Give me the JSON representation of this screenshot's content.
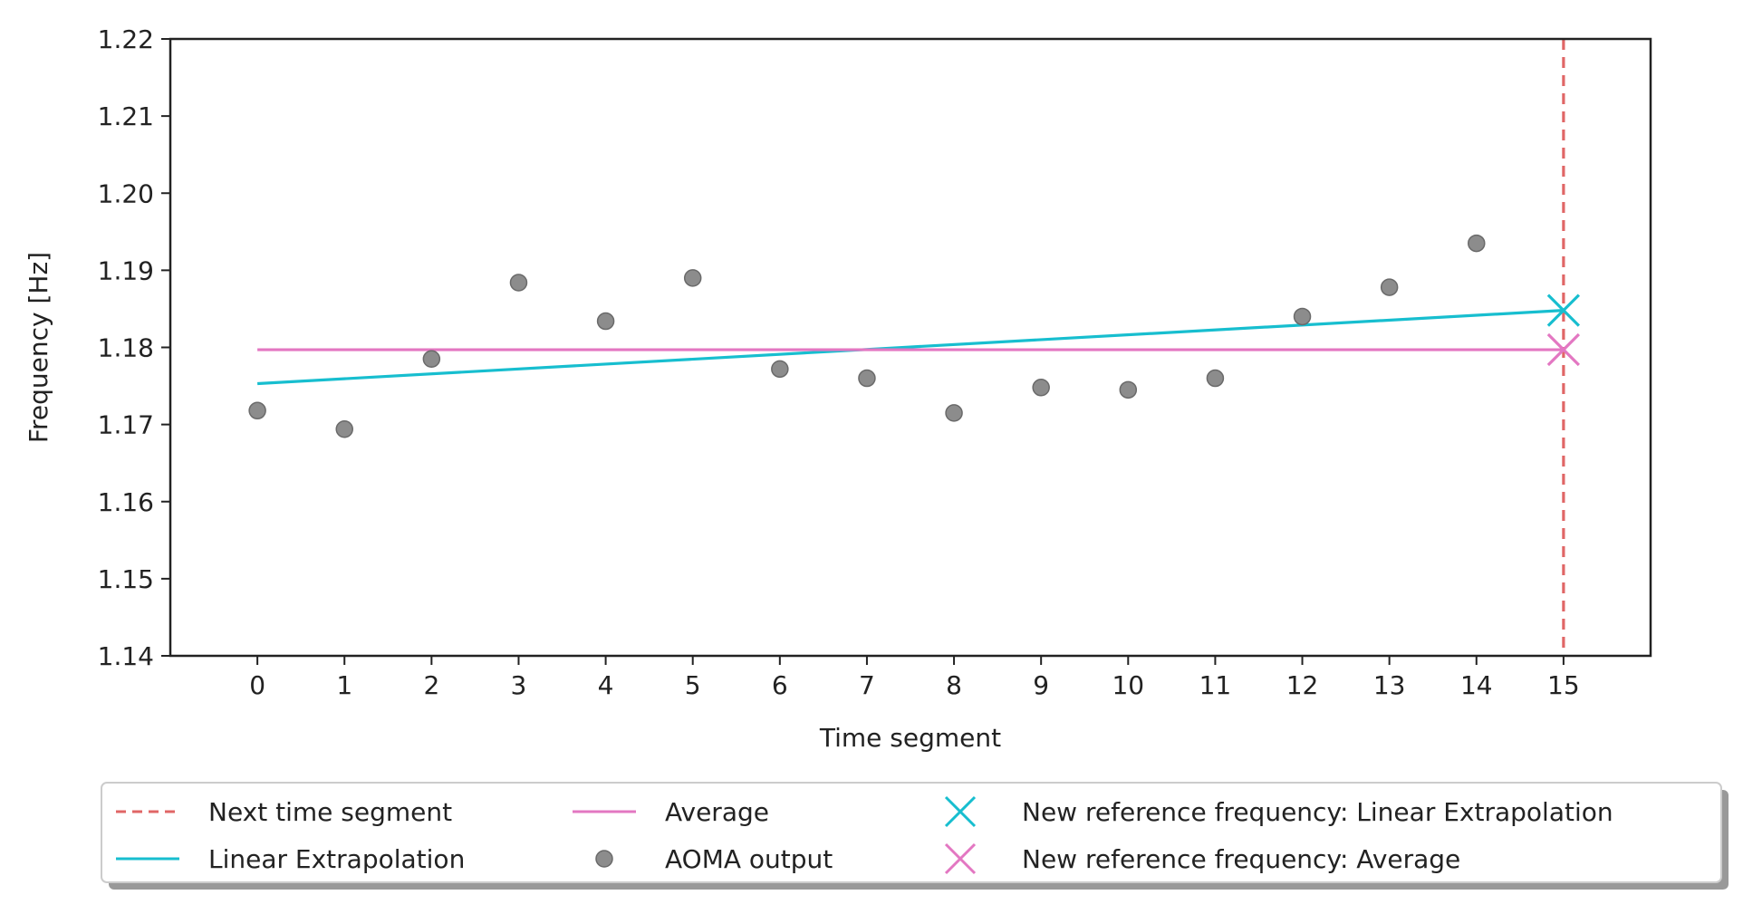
{
  "chart_data": {
    "type": "scatter",
    "xlabel": "Time segment",
    "ylabel": "Frequency [Hz]",
    "xlim": [
      -1,
      16
    ],
    "ylim": [
      1.14,
      1.22
    ],
    "xticks": [
      0,
      1,
      2,
      3,
      4,
      5,
      6,
      7,
      8,
      9,
      10,
      11,
      12,
      13,
      14,
      15
    ],
    "yticks": [
      "1.14",
      "1.15",
      "1.16",
      "1.17",
      "1.18",
      "1.19",
      "1.20",
      "1.21",
      "1.22"
    ],
    "grid": false,
    "legend_position": "bottom-center",
    "series": [
      {
        "name": "Next time segment",
        "kind": "vline",
        "x": 15,
        "color": "#e06666",
        "style": "dashed"
      },
      {
        "name": "Linear Extrapolation",
        "kind": "line",
        "x": [
          0,
          15
        ],
        "y": [
          1.1753,
          1.1848
        ],
        "color": "#17becf"
      },
      {
        "name": "Average",
        "kind": "line",
        "x": [
          0,
          15
        ],
        "y": [
          1.1797,
          1.1797
        ],
        "color": "#e377c2"
      },
      {
        "name": "AOMA output",
        "kind": "scatter",
        "x": [
          0,
          1,
          2,
          3,
          4,
          5,
          6,
          7,
          8,
          9,
          10,
          11,
          12,
          13,
          14
        ],
        "y": [
          1.1718,
          1.1694,
          1.1785,
          1.1884,
          1.1834,
          1.189,
          1.1772,
          1.176,
          1.1715,
          1.1748,
          1.1745,
          1.176,
          1.184,
          1.1878,
          1.1935
        ],
        "color": "#8c8c8c"
      },
      {
        "name": "New reference frequency: Linear Extrapolation",
        "kind": "marker-x",
        "x": 15,
        "y": 1.1848,
        "color": "#17becf"
      },
      {
        "name": "New reference frequency: Average",
        "kind": "marker-x",
        "x": 15,
        "y": 1.1797,
        "color": "#e377c2"
      }
    ]
  }
}
